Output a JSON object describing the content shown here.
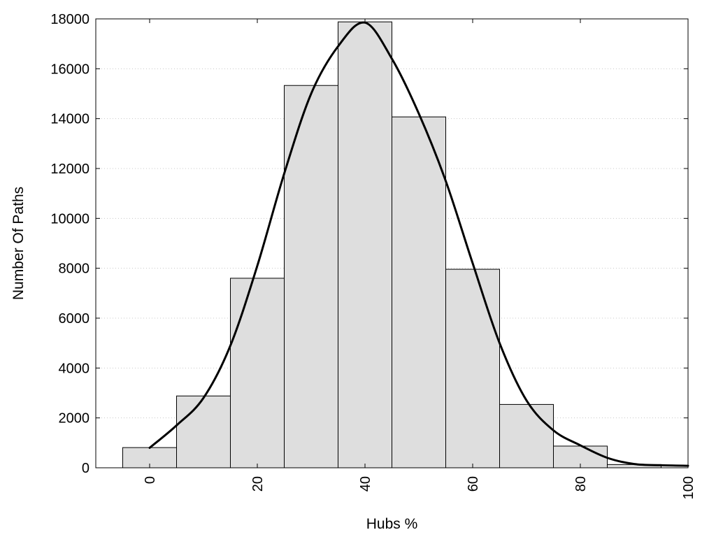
{
  "chart_data": {
    "type": "bar",
    "title": "",
    "xlabel": "Hubs %",
    "ylabel": "Number Of Paths",
    "xlim": [
      -10,
      100
    ],
    "ylim": [
      0,
      18000
    ],
    "grid": "horizontal dotted",
    "bar_color": "#dedede",
    "bin_width": 10,
    "bins": [
      {
        "x": 0,
        "value": 810
      },
      {
        "x": 10,
        "value": 2880
      },
      {
        "x": 20,
        "value": 7600
      },
      {
        "x": 30,
        "value": 15330
      },
      {
        "x": 40,
        "value": 17880
      },
      {
        "x": 50,
        "value": 14070
      },
      {
        "x": 60,
        "value": 7960
      },
      {
        "x": 70,
        "value": 2540
      },
      {
        "x": 80,
        "value": 870
      },
      {
        "x": 90,
        "value": 130
      }
    ],
    "curve": {
      "color": "#000000",
      "x": [
        0,
        5,
        10,
        15,
        20,
        25,
        30,
        35,
        40,
        45,
        50,
        55,
        60,
        65,
        70,
        75,
        80,
        85,
        90,
        95,
        100
      ],
      "y": [
        800,
        1700,
        2800,
        4900,
        8100,
        11800,
        15000,
        16900,
        17850,
        16400,
        14200,
        11500,
        8200,
        5000,
        2700,
        1500,
        900,
        400,
        150,
        100,
        80
      ]
    },
    "xticks": [
      0,
      20,
      40,
      60,
      80,
      100
    ],
    "yticks": [
      0,
      2000,
      4000,
      6000,
      8000,
      10000,
      12000,
      14000,
      16000,
      18000
    ]
  }
}
